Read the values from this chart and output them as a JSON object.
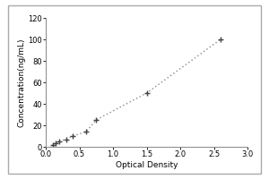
{
  "x": [
    0.1,
    0.15,
    0.2,
    0.3,
    0.4,
    0.6,
    0.75,
    1.5,
    2.6
  ],
  "y": [
    2,
    3,
    5,
    7,
    10,
    14,
    25,
    50,
    100
  ],
  "xlabel": "Optical Density",
  "ylabel": "Concentration(ng/mL)",
  "xlim": [
    0,
    3
  ],
  "ylim": [
    0,
    120
  ],
  "xticks": [
    0,
    0.5,
    1,
    1.5,
    2,
    2.5,
    3
  ],
  "yticks": [
    0,
    20,
    40,
    60,
    80,
    100,
    120
  ],
  "line_color": "#888888",
  "marker": "+",
  "marker_color": "#444444",
  "marker_size": 5,
  "line_style": "dotted",
  "background_color": "#ffffff",
  "font_size_label": 6.5,
  "font_size_tick": 6
}
